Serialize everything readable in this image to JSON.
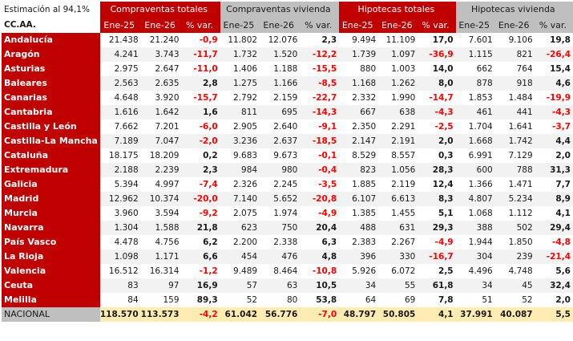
{
  "title": "Estimación al 94,1%",
  "row_header": "CC.AA.",
  "groups": [
    {
      "label": "Compraventas totales",
      "style": "red"
    },
    {
      "label": "Compraventas vivienda",
      "style": "grey"
    },
    {
      "label": "Hipotecas totales",
      "style": "red"
    },
    {
      "label": "Hipotecas vivienda",
      "style": "grey"
    }
  ],
  "subheaders": [
    "Ene-25",
    "Ene-26",
    "% var."
  ],
  "colors": {
    "brand_red": "#c00000",
    "header_grey": "#bfbfbf",
    "negative": "#ff0000",
    "national_bg": "#ffecb3",
    "alt_row": "#f2f2f2"
  },
  "rows": [
    {
      "name": "Andalucía",
      "values": [
        "21.438",
        "21.240",
        "-0,9",
        "11.802",
        "12.076",
        "2,3",
        "9.494",
        "11.109",
        "17,0",
        "7.601",
        "9.106",
        "19,8"
      ]
    },
    {
      "name": "Aragón",
      "values": [
        "4.241",
        "3.743",
        "-11,7",
        "1.732",
        "1.520",
        "-12,2",
        "1.739",
        "1.097",
        "-36,9",
        "1.115",
        "821",
        "-26,4"
      ]
    },
    {
      "name": "Asturias",
      "values": [
        "2.975",
        "2.647",
        "-11,0",
        "1.406",
        "1.188",
        "-15,5",
        "880",
        "1.003",
        "14,0",
        "662",
        "764",
        "15,4"
      ]
    },
    {
      "name": "Baleares",
      "values": [
        "2.563",
        "2.635",
        "2,8",
        "1.275",
        "1.166",
        "-8,5",
        "1.168",
        "1.262",
        "8,0",
        "878",
        "918",
        "4,6"
      ]
    },
    {
      "name": "Canarias",
      "values": [
        "4.648",
        "3.920",
        "-15,7",
        "2.792",
        "2.159",
        "-22,7",
        "2.332",
        "1.990",
        "-14,7",
        "1.853",
        "1.484",
        "-19,9"
      ]
    },
    {
      "name": "Cantabria",
      "values": [
        "1.616",
        "1.642",
        "1,6",
        "811",
        "695",
        "-14,3",
        "667",
        "638",
        "-4,3",
        "461",
        "441",
        "-4,3"
      ]
    },
    {
      "name": "Castilla y León",
      "values": [
        "7.662",
        "7.201",
        "-6,0",
        "2.905",
        "2.640",
        "-9,1",
        "2.350",
        "2.291",
        "-2,5",
        "1.704",
        "1.641",
        "-3,7"
      ]
    },
    {
      "name": "Castilla-La Mancha",
      "values": [
        "7.189",
        "7.047",
        "-2,0",
        "3.236",
        "2.637",
        "-18,5",
        "2.147",
        "2.191",
        "2,0",
        "1.668",
        "1.742",
        "4,4"
      ]
    },
    {
      "name": "Cataluña",
      "values": [
        "18.175",
        "18.209",
        "0,2",
        "9.683",
        "9.673",
        "-0,1",
        "8.529",
        "8.557",
        "0,3",
        "6.991",
        "7.129",
        "2,0"
      ]
    },
    {
      "name": "Extremadura",
      "values": [
        "2.188",
        "2.239",
        "2,3",
        "984",
        "980",
        "-0,4",
        "823",
        "1.056",
        "28,3",
        "600",
        "788",
        "31,3"
      ]
    },
    {
      "name": "Galicia",
      "values": [
        "5.394",
        "4.997",
        "-7,4",
        "2.326",
        "2.245",
        "-3,5",
        "1.885",
        "2.119",
        "12,4",
        "1.366",
        "1.471",
        "7,7"
      ]
    },
    {
      "name": "Madrid",
      "values": [
        "12.962",
        "10.374",
        "-20,0",
        "7.140",
        "5.652",
        "-20,8",
        "6.107",
        "6.613",
        "8,3",
        "4.807",
        "5.234",
        "8,9"
      ]
    },
    {
      "name": "Murcia",
      "values": [
        "3.960",
        "3.594",
        "-9,2",
        "2.075",
        "1.974",
        "-4,9",
        "1.385",
        "1.455",
        "5,1",
        "1.068",
        "1.112",
        "4,1"
      ]
    },
    {
      "name": "Navarra",
      "values": [
        "1.304",
        "1.588",
        "21,8",
        "623",
        "750",
        "20,4",
        "488",
        "631",
        "29,3",
        "388",
        "502",
        "29,4"
      ]
    },
    {
      "name": "País Vasco",
      "values": [
        "4.478",
        "4.756",
        "6,2",
        "2.200",
        "2.338",
        "6,3",
        "2.383",
        "2.267",
        "-4,9",
        "1.944",
        "1.850",
        "-4,8"
      ]
    },
    {
      "name": "La Rioja",
      "values": [
        "1.098",
        "1.171",
        "6,6",
        "454",
        "476",
        "4,8",
        "396",
        "330",
        "-16,7",
        "304",
        "239",
        "-21,4"
      ]
    },
    {
      "name": "Valencia",
      "values": [
        "16.512",
        "16.314",
        "-1,2",
        "9.489",
        "8.464",
        "-10,8",
        "5.926",
        "6.072",
        "2,5",
        "4.496",
        "4.748",
        "5,6"
      ]
    },
    {
      "name": "Ceuta",
      "values": [
        "83",
        "97",
        "16,9",
        "57",
        "63",
        "10,5",
        "34",
        "55",
        "61,8",
        "34",
        "45",
        "32,4"
      ]
    },
    {
      "name": "Melilla",
      "values": [
        "84",
        "159",
        "89,3",
        "52",
        "80",
        "53,8",
        "64",
        "69",
        "7,8",
        "51",
        "52",
        "2,0"
      ]
    }
  ],
  "national": {
    "name": "NACIONAL",
    "values": [
      "118.570",
      "113.573",
      "-4,2",
      "61.042",
      "56.776",
      "-7,0",
      "48.797",
      "50.805",
      "4,1",
      "37.991",
      "40.087",
      "5,5"
    ]
  }
}
